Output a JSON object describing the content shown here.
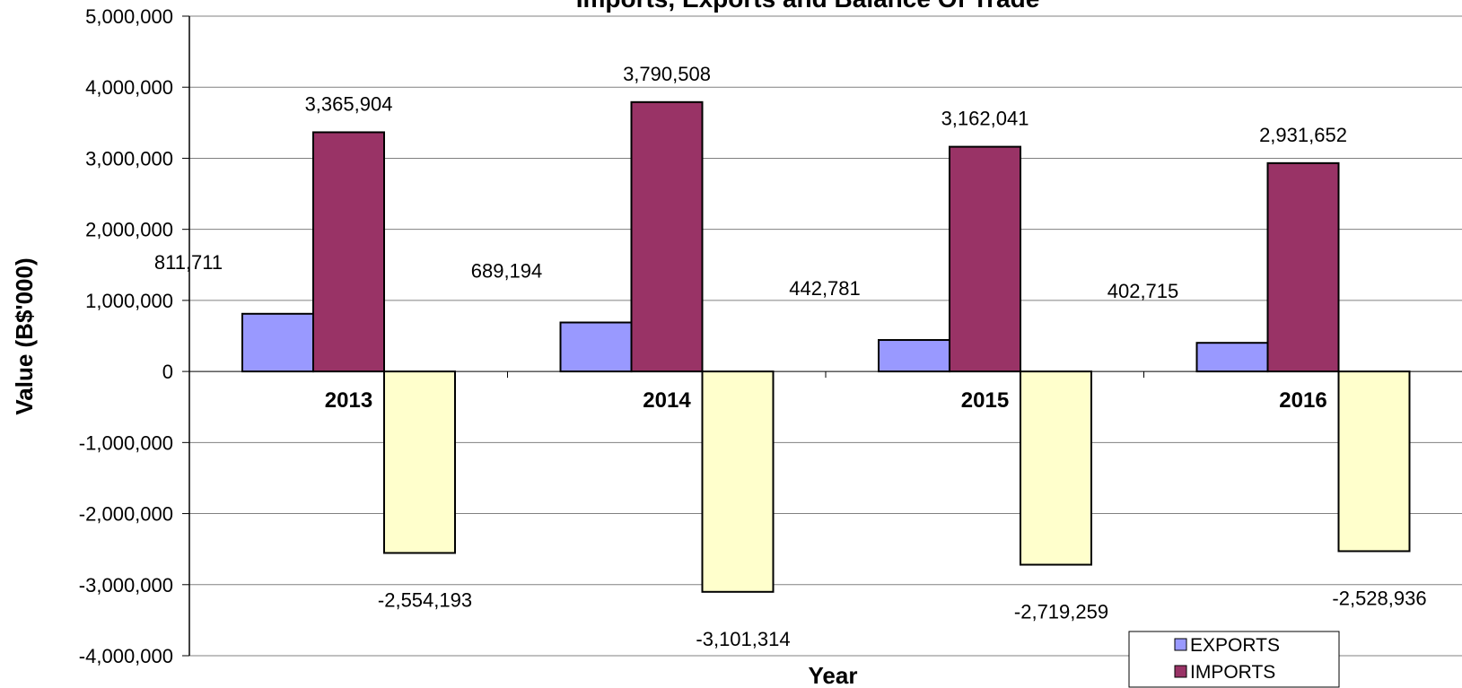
{
  "chart_data": {
    "type": "bar",
    "title": "Imports, Exports and Balance Of Trade",
    "xlabel": "Year",
    "ylabel": "Value (B$'000)",
    "categories": [
      "2013",
      "2014",
      "2015",
      "2016"
    ],
    "ylim": [
      -4000000,
      5000000
    ],
    "ytick_step": 1000000,
    "yticks": [
      "5,000,000",
      "4,000,000",
      "3,000,000",
      "2,000,000",
      "1,000,000",
      "0",
      "-1,000,000",
      "-2,000,000",
      "-3,000,000",
      "-4,000,000"
    ],
    "grid": true,
    "legend_position": "bottom-right",
    "series": [
      {
        "name": "EXPORTS",
        "color": "#9999FF",
        "values": [
          811711,
          689194,
          442781,
          402715
        ],
        "labels": [
          "811,711",
          "689,194",
          "442,781",
          "402,715"
        ]
      },
      {
        "name": "IMPORTS",
        "color": "#993366",
        "values": [
          3365904,
          3790508,
          3162041,
          2931652
        ],
        "labels": [
          "3,365,904",
          "3,790,508",
          "3,162,041",
          "2,931,652"
        ]
      },
      {
        "color": "#FFFFCC",
        "values": [
          -2554193,
          -3101314,
          -2719259,
          -2528936
        ],
        "labels": [
          "-2,554,193",
          "-3,101,314",
          "-2,719,259",
          "-2,528,936"
        ]
      }
    ]
  }
}
